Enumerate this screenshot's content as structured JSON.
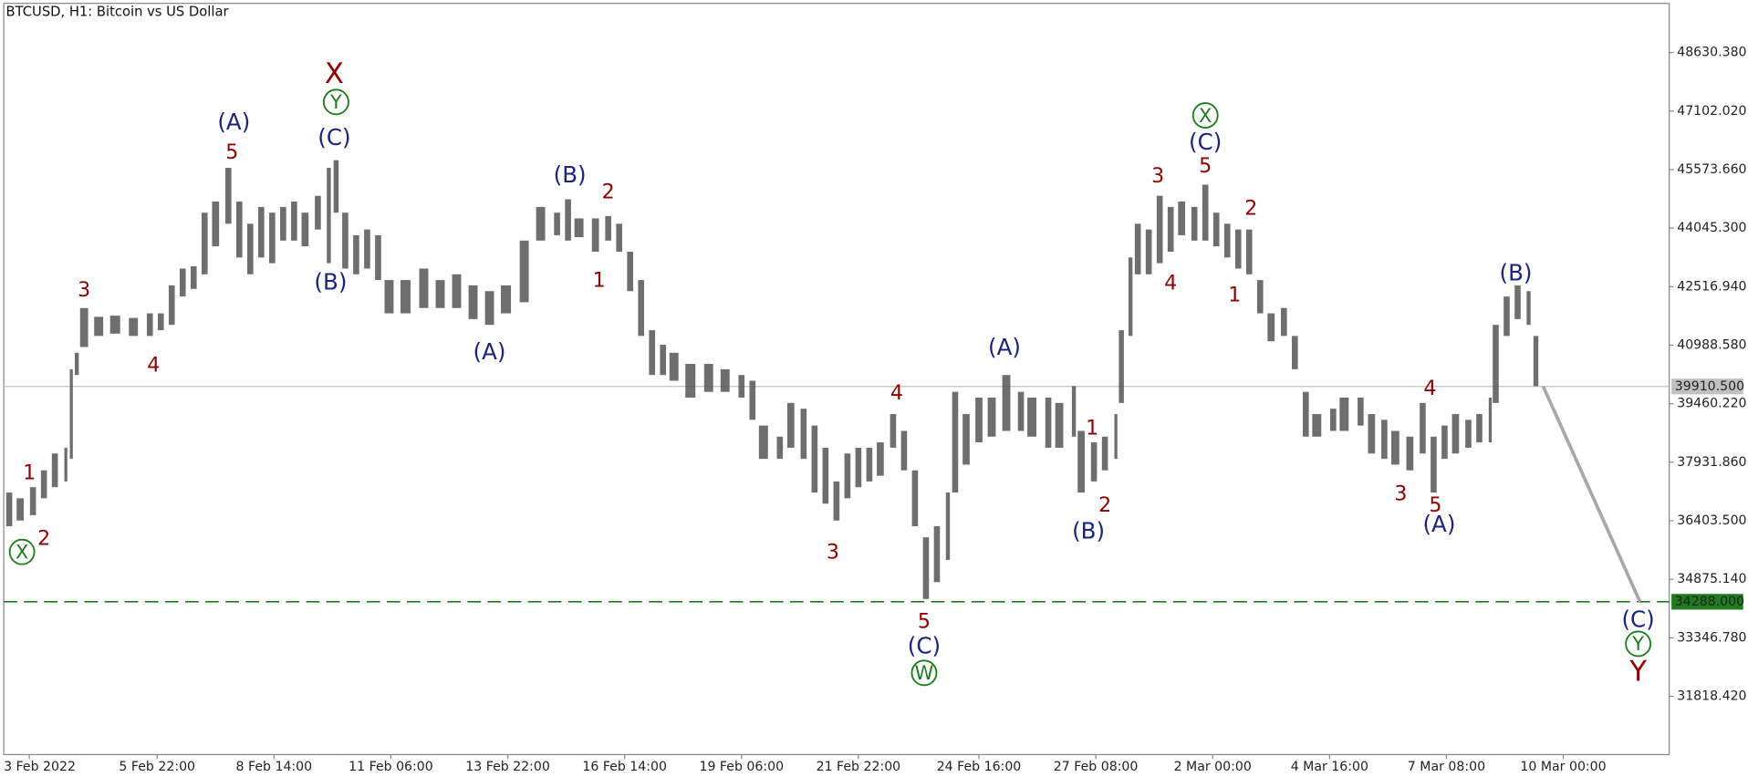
{
  "chart_data": {
    "type": "ohlc",
    "title": "BTCUSD, H1:  Bitcoin vs US Dollar",
    "xlim": [
      -14,
      898
    ],
    "xticks": [
      {
        "value": 0,
        "label": "3 Feb 2022"
      },
      {
        "value": 70,
        "label": "5 Feb 22:00"
      },
      {
        "value": 134,
        "label": "8 Feb 14:00"
      },
      {
        "value": 198,
        "label": "11 Feb 06:00"
      },
      {
        "value": 262,
        "label": "13 Feb 22:00"
      },
      {
        "value": 326,
        "label": "16 Feb 14:00"
      },
      {
        "value": 390,
        "label": "19 Feb 06:00"
      },
      {
        "value": 454,
        "label": "21 Feb 22:00"
      },
      {
        "value": 520,
        "label": "24 Feb 16:00"
      },
      {
        "value": 584,
        "label": "27 Feb 08:00"
      },
      {
        "value": 648,
        "label": "2 Mar 00:00"
      },
      {
        "value": 712,
        "label": "4 Mar 16:00"
      },
      {
        "value": 776,
        "label": "7 Mar 08:00"
      },
      {
        "value": 840,
        "label": "10 Mar 00:00"
      }
    ],
    "ylim": [
      30296,
      49916
    ],
    "yticks": [
      {
        "value": 31818.42,
        "label": "31818.420"
      },
      {
        "value": 33346.78,
        "label": "33346.780"
      },
      {
        "value": 34875.14,
        "label": "34875.140"
      },
      {
        "value": 36403.5,
        "label": "36403.500"
      },
      {
        "value": 37931.86,
        "label": "37931.860"
      },
      {
        "value": 39460.22,
        "label": "39460.220"
      },
      {
        "value": 40988.58,
        "label": "40988.580"
      },
      {
        "value": 42516.94,
        "label": "42516.940"
      },
      {
        "value": 44045.3,
        "label": "44045.300"
      },
      {
        "value": 45573.66,
        "label": "45573.660"
      },
      {
        "value": 47102.02,
        "label": "47102.020"
      },
      {
        "value": 48630.38,
        "label": "48630.380"
      }
    ],
    "bars": {
      "color": "#555555",
      "x": [
        -11,
        -5,
        2,
        8,
        14,
        20,
        23,
        26,
        30,
        38,
        47,
        57,
        66,
        72,
        78,
        84,
        90,
        96,
        102,
        109,
        115,
        121,
        127,
        133,
        139,
        145,
        151,
        158,
        164,
        168,
        173,
        179,
        185,
        191,
        197,
        206,
        216,
        225,
        234,
        243,
        252,
        261,
        271,
        280,
        289,
        295,
        301,
        310,
        317,
        323,
        329,
        335,
        341,
        347,
        353,
        362,
        372,
        381,
        390,
        396,
        402,
        411,
        417,
        424,
        430,
        436,
        442,
        448,
        454,
        460,
        466,
        473,
        479,
        485,
        491,
        497,
        503,
        507,
        513,
        520,
        527,
        535,
        543,
        549,
        558,
        564,
        572,
        576,
        583,
        589,
        595,
        598,
        603,
        607,
        613,
        619,
        625,
        631,
        638,
        644,
        650,
        656,
        662,
        668,
        674,
        680,
        687,
        693,
        699,
        705,
        714,
        720,
        729,
        735,
        742,
        748,
        756,
        763,
        769,
        775,
        781,
        788,
        794,
        800,
        803,
        809,
        815,
        821,
        825
      ],
      "high": [
        37140,
        36990,
        37280,
        37720,
        38160,
        38310,
        40360,
        40790,
        41960,
        41730,
        41760,
        41700,
        41820,
        41820,
        42550,
        42990,
        43050,
        44450,
        44740,
        45620,
        44740,
        44160,
        44600,
        44450,
        44600,
        44740,
        44450,
        44890,
        45620,
        45820,
        44450,
        43860,
        44010,
        43860,
        42690,
        42690,
        42990,
        42690,
        42840,
        42550,
        42400,
        42550,
        43720,
        44600,
        44450,
        44800,
        44300,
        44300,
        44360,
        44160,
        43430,
        42690,
        41380,
        41000,
        40790,
        40500,
        40500,
        40360,
        40210,
        40060,
        38890,
        38600,
        39480,
        39330,
        38890,
        38310,
        37430,
        38160,
        38310,
        38310,
        38450,
        39190,
        38750,
        37720,
        35970,
        36260,
        37140,
        39770,
        39190,
        39620,
        39620,
        40210,
        39770,
        39620,
        39620,
        39480,
        39920,
        38750,
        38450,
        38600,
        39190,
        41380,
        43280,
        44160,
        44010,
        44890,
        44600,
        44740,
        44600,
        45180,
        44450,
        44160,
        44010,
        44010,
        42690,
        41820,
        41960,
        41230,
        39770,
        39190,
        39330,
        39620,
        39620,
        39190,
        39040,
        38750,
        38600,
        39480,
        38600,
        38890,
        39190,
        39040,
        39190,
        39620,
        41520,
        42260,
        42550,
        42400,
        41230
      ],
      "low": [
        36260,
        36410,
        36550,
        36990,
        37280,
        37430,
        38020,
        40210,
        40940,
        41230,
        41290,
        41230,
        41230,
        41380,
        41520,
        42260,
        42460,
        42840,
        43570,
        44160,
        43280,
        42840,
        43280,
        43130,
        43720,
        43720,
        43570,
        44010,
        43130,
        44450,
        42990,
        42840,
        42990,
        42690,
        41820,
        41820,
        41960,
        41960,
        41960,
        41670,
        41520,
        41820,
        42110,
        43720,
        43860,
        43720,
        43810,
        43430,
        43720,
        43430,
        42400,
        41230,
        40210,
        40210,
        40060,
        39620,
        39770,
        39770,
        39620,
        39040,
        38020,
        38020,
        38310,
        38020,
        37140,
        36850,
        36410,
        36990,
        37280,
        37430,
        37580,
        38310,
        37720,
        36260,
        34360,
        34800,
        35380,
        37140,
        37870,
        38450,
        38600,
        38750,
        38750,
        38600,
        38310,
        38310,
        38600,
        37140,
        37430,
        37720,
        38020,
        39480,
        41230,
        42840,
        42840,
        43130,
        43430,
        43860,
        43720,
        43720,
        43570,
        43280,
        42990,
        42840,
        41820,
        41090,
        41230,
        40360,
        38600,
        38600,
        38750,
        38750,
        38890,
        38160,
        38020,
        37870,
        37720,
        38160,
        37140,
        38020,
        38160,
        38310,
        38450,
        38450,
        39480,
        41230,
        41670,
        41520,
        39920
      ]
    },
    "current_price": {
      "value": 39910.5,
      "label": "39910.500",
      "color": "#c0c0c0"
    },
    "support": {
      "value": 34288,
      "label": "34288.000",
      "color": "#1e7b1e"
    },
    "forecast": {
      "color": "#a8a8a8",
      "x": [
        829,
        882
      ],
      "values": [
        39910.5,
        34288
      ]
    },
    "annotations": [
      {
        "text": "X",
        "x": -4,
        "y": 35590,
        "color": "#1e7b1e",
        "circled": true
      },
      {
        "text": "1",
        "x": 0,
        "y": 37660,
        "color": "#8b0000"
      },
      {
        "text": "2",
        "x": 8,
        "y": 35940,
        "color": "#8b0000"
      },
      {
        "text": "3",
        "x": 30,
        "y": 42430,
        "color": "#8b0000"
      },
      {
        "text": "4",
        "x": 68,
        "y": 40470,
        "color": "#8b0000"
      },
      {
        "text": "(A)",
        "x": 112,
        "y": 46820,
        "color": "#1a237e"
      },
      {
        "text": "5",
        "x": 111,
        "y": 46030,
        "color": "#8b0000"
      },
      {
        "text": "X",
        "x": 167,
        "y": 48070,
        "color": "#8b0000"
      },
      {
        "text": "Y",
        "x": 168,
        "y": 47340,
        "color": "#1e7b1e",
        "circled": true
      },
      {
        "text": "(C)",
        "x": 167,
        "y": 46410,
        "color": "#1a237e"
      },
      {
        "text": "(B)",
        "x": 165,
        "y": 42640,
        "color": "#1a237e"
      },
      {
        "text": "(A)",
        "x": 252,
        "y": 40820,
        "color": "#1a237e"
      },
      {
        "text": "(B)",
        "x": 296,
        "y": 45440,
        "color": "#1a237e"
      },
      {
        "text": "2",
        "x": 317,
        "y": 45000,
        "color": "#8b0000"
      },
      {
        "text": "1",
        "x": 312,
        "y": 42690,
        "color": "#8b0000"
      },
      {
        "text": "4",
        "x": 475,
        "y": 39740,
        "color": "#8b0000"
      },
      {
        "text": "3",
        "x": 440,
        "y": 35590,
        "color": "#8b0000"
      },
      {
        "text": "5",
        "x": 490,
        "y": 33780,
        "color": "#8b0000"
      },
      {
        "text": "(C)",
        "x": 490,
        "y": 33130,
        "color": "#1a237e"
      },
      {
        "text": "W",
        "x": 490,
        "y": 32430,
        "color": "#1e7b1e",
        "circled": true
      },
      {
        "text": "(A)",
        "x": 534,
        "y": 40940,
        "color": "#1a237e"
      },
      {
        "text": "1",
        "x": 582,
        "y": 38830,
        "color": "#8b0000"
      },
      {
        "text": "2",
        "x": 589,
        "y": 36820,
        "color": "#8b0000"
      },
      {
        "text": "(B)",
        "x": 580,
        "y": 36140,
        "color": "#1a237e"
      },
      {
        "text": "3",
        "x": 618,
        "y": 45410,
        "color": "#8b0000"
      },
      {
        "text": "4",
        "x": 625,
        "y": 42610,
        "color": "#8b0000"
      },
      {
        "text": "X",
        "x": 644,
        "y": 46990,
        "color": "#1e7b1e",
        "circled": true
      },
      {
        "text": "(C)",
        "x": 644,
        "y": 46290,
        "color": "#1a237e"
      },
      {
        "text": "5",
        "x": 644,
        "y": 45680,
        "color": "#8b0000"
      },
      {
        "text": "2",
        "x": 669,
        "y": 44570,
        "color": "#8b0000"
      },
      {
        "text": "1",
        "x": 660,
        "y": 42310,
        "color": "#8b0000"
      },
      {
        "text": "4",
        "x": 767,
        "y": 39860,
        "color": "#8b0000"
      },
      {
        "text": "3",
        "x": 751,
        "y": 37110,
        "color": "#8b0000"
      },
      {
        "text": "5",
        "x": 770,
        "y": 36820,
        "color": "#8b0000"
      },
      {
        "text": "(A)",
        "x": 772,
        "y": 36320,
        "color": "#1a237e"
      },
      {
        "text": "(B)",
        "x": 814,
        "y": 42870,
        "color": "#1a237e"
      },
      {
        "text": "(C)",
        "x": 881,
        "y": 33830,
        "color": "#1a237e"
      },
      {
        "text": "Y",
        "x": 881,
        "y": 33190,
        "color": "#1e7b1e",
        "circled": true
      },
      {
        "text": "Y",
        "x": 881,
        "y": 32460,
        "color": "#8b0000"
      }
    ]
  }
}
